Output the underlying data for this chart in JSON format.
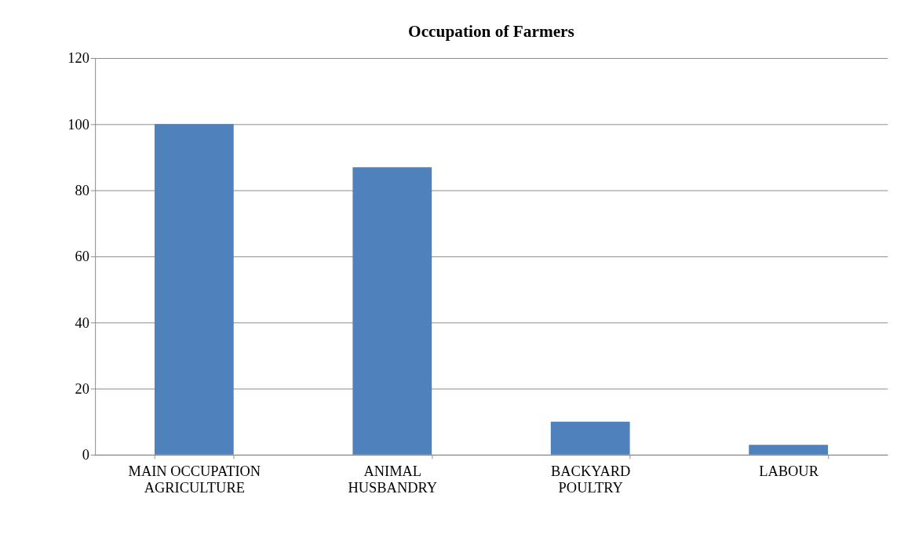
{
  "chart_data": {
    "type": "bar",
    "title": "Occupation of Farmers",
    "categories": [
      "MAIN OCCUPATION\nAGRICULTURE",
      "ANIMAL\nHUSBANDRY",
      "BACKYARD\nPOULTRY",
      "LABOUR"
    ],
    "values": [
      100,
      87,
      10,
      3
    ],
    "color": "#4f81bd",
    "ylim": [
      0,
      120
    ],
    "yticks": [
      0,
      20,
      40,
      60,
      80,
      100,
      120
    ],
    "grid": "y"
  }
}
